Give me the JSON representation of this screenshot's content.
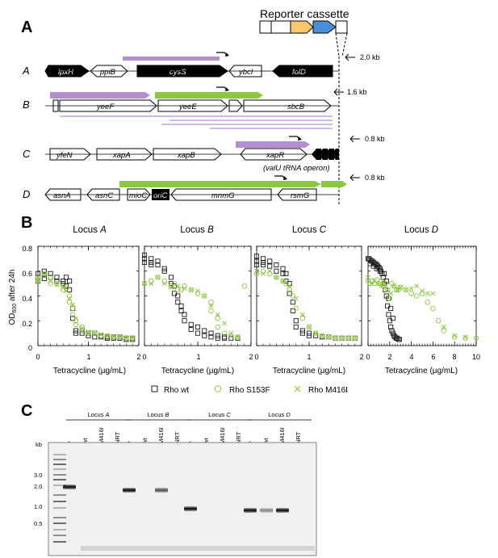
{
  "panels": {
    "a": "A",
    "b": "B",
    "c": "C"
  },
  "panel_a": {
    "reporter_label": "Reporter cassette",
    "rows": [
      {
        "label": "A",
        "genes": [
          "lpxH",
          "ppiB",
          "cysS",
          "ybcI",
          "folD"
        ],
        "kb": "2.0 kb"
      },
      {
        "label": "B",
        "genes": [
          "yeeF",
          "yeeE",
          "sbcB"
        ],
        "kb": "1.6 kb"
      },
      {
        "label": "C",
        "genes": [
          "yfeN",
          "xapA",
          "xapB",
          "xapR"
        ],
        "operon": "(valU tRNA operon)",
        "kb": "0.8 kb"
      },
      {
        "label": "D",
        "genes": [
          "asnA",
          "asnC",
          "mioC",
          "oriC",
          "mnmG",
          "rsmG"
        ],
        "kb": "0.8 kb"
      }
    ],
    "colors": {
      "purple": "#b48fd0",
      "green": "#8dc63f",
      "orange": "#fbc96b",
      "blue": "#4a90d9"
    }
  },
  "panel_b": {
    "ylabel_prefix": "OD",
    "ylabel_sub": "600",
    "ylabel_suffix": " after 24h",
    "xlabel": "Tetracycline (µg/mL)",
    "legend": [
      "Rho wt",
      "Rho S153F",
      "Rho M416I"
    ],
    "colors": {
      "wt": "#1a1a1a",
      "s153f": "#8dc63f",
      "m416i": "#8dc63f"
    }
  },
  "chart_data": [
    {
      "type": "scatter",
      "title_prefix": "Locus ",
      "title_locus": "A",
      "xlim": [
        0,
        2
      ],
      "ylim": [
        0,
        0.8
      ],
      "xticks": [
        "0",
        "1",
        "2"
      ],
      "yticks": [
        "0",
        "0.2",
        "0.4",
        "0.6",
        "0.8"
      ],
      "series": [
        {
          "name": "Rho wt",
          "x": [
            0.0,
            0.0,
            0.0,
            0.125,
            0.125,
            0.125,
            0.25,
            0.25,
            0.375,
            0.375,
            0.5,
            0.5,
            0.56,
            0.56,
            0.625,
            0.625,
            0.69,
            0.69,
            0.75,
            0.75,
            0.875,
            0.875,
            1.0,
            1.0,
            1.125,
            1.125,
            1.25,
            1.25,
            1.375,
            1.375,
            1.5,
            1.5,
            1.625,
            1.625,
            1.75,
            1.75,
            1.875,
            1.875
          ],
          "y": [
            0.58,
            0.55,
            0.52,
            0.6,
            0.57,
            0.54,
            0.58,
            0.55,
            0.55,
            0.52,
            0.52,
            0.5,
            0.55,
            0.48,
            0.52,
            0.45,
            0.3,
            0.22,
            0.12,
            0.1,
            0.12,
            0.1,
            0.1,
            0.08,
            0.1,
            0.07,
            0.08,
            0.07,
            0.07,
            0.06,
            0.07,
            0.06,
            0.07,
            0.06,
            0.06,
            0.05,
            0.06,
            0.05
          ]
        },
        {
          "name": "Rho S153F",
          "x": [
            0.0,
            0.0,
            0.125,
            0.25,
            0.25,
            0.375,
            0.5,
            0.5,
            0.56,
            0.625,
            0.625,
            0.69,
            0.69,
            0.75,
            0.75,
            0.875,
            0.875,
            1.0,
            1.125,
            1.25,
            1.375,
            1.5,
            1.625,
            1.75,
            1.875
          ],
          "y": [
            0.55,
            0.52,
            0.58,
            0.55,
            0.5,
            0.5,
            0.48,
            0.45,
            0.46,
            0.4,
            0.35,
            0.3,
            0.25,
            0.2,
            0.17,
            0.15,
            0.12,
            0.1,
            0.1,
            0.08,
            0.08,
            0.07,
            0.07,
            0.06,
            0.06
          ]
        },
        {
          "name": "Rho M416I",
          "x": [
            0.0,
            0.125,
            0.25,
            0.375,
            0.5,
            0.56,
            0.625,
            0.69,
            0.75,
            0.875,
            1.0,
            1.125,
            1.25,
            1.375,
            1.5,
            1.625,
            1.75,
            1.875
          ],
          "y": [
            0.53,
            0.57,
            0.52,
            0.49,
            0.47,
            0.44,
            0.38,
            0.33,
            0.22,
            0.14,
            0.11,
            0.1,
            0.09,
            0.08,
            0.07,
            0.07,
            0.06,
            0.06
          ]
        }
      ]
    },
    {
      "type": "scatter",
      "title_prefix": "Locus ",
      "title_locus": "B",
      "xlim": [
        0,
        2
      ],
      "ylim": [
        0,
        0.8
      ],
      "xticks": [
        "0",
        "1",
        "2"
      ],
      "yticks": [
        "0",
        "0.2",
        "0.4",
        "0.6",
        "0.8"
      ],
      "series": [
        {
          "name": "Rho wt",
          "x": [
            0.0,
            0.0,
            0.0,
            0.125,
            0.125,
            0.125,
            0.25,
            0.25,
            0.375,
            0.375,
            0.5,
            0.5,
            0.56,
            0.56,
            0.625,
            0.625,
            0.69,
            0.69,
            0.75,
            0.75,
            0.875,
            0.875,
            1.0,
            1.0,
            1.125,
            1.125,
            1.25,
            1.25,
            1.375,
            1.375,
            1.5,
            1.5,
            1.625,
            1.75
          ],
          "y": [
            0.73,
            0.7,
            0.67,
            0.7,
            0.67,
            0.65,
            0.68,
            0.65,
            0.62,
            0.6,
            0.55,
            0.5,
            0.48,
            0.42,
            0.4,
            0.35,
            0.32,
            0.28,
            0.25,
            0.2,
            0.17,
            0.13,
            0.15,
            0.1,
            0.12,
            0.08,
            0.1,
            0.07,
            0.08,
            0.06,
            0.07,
            0.06,
            0.06,
            0.06
          ]
        },
        {
          "name": "Rho S153F",
          "x": [
            0.0,
            0.125,
            0.25,
            0.375,
            0.5,
            0.56,
            0.625,
            0.69,
            0.75,
            0.875,
            1.0,
            1.125,
            1.25,
            1.25,
            1.375,
            1.375,
            1.5,
            1.625,
            1.75,
            1.875
          ],
          "y": [
            0.5,
            0.52,
            0.55,
            0.52,
            0.48,
            0.5,
            0.45,
            0.45,
            0.48,
            0.45,
            0.42,
            0.4,
            0.35,
            0.28,
            0.22,
            0.15,
            0.1,
            0.08,
            0.07,
            0.48
          ]
        },
        {
          "name": "Rho M416I",
          "x": [
            0.0,
            0.125,
            0.25,
            0.375,
            0.5,
            0.625,
            0.75,
            0.875,
            1.0,
            1.125,
            1.25,
            1.375,
            1.5,
            1.625,
            1.75
          ],
          "y": [
            0.5,
            0.5,
            0.55,
            0.5,
            0.47,
            0.48,
            0.46,
            0.45,
            0.44,
            0.4,
            0.32,
            0.25,
            0.18,
            0.1,
            0.07
          ]
        }
      ]
    },
    {
      "type": "scatter",
      "title_prefix": "Locus ",
      "title_locus": "C",
      "xlim": [
        0,
        2
      ],
      "ylim": [
        0,
        0.8
      ],
      "xticks": [
        "0",
        "1",
        "2"
      ],
      "yticks": [
        "0",
        "0.2",
        "0.4",
        "0.6",
        "0.8"
      ],
      "series": [
        {
          "name": "Rho wt",
          "x": [
            0.0,
            0.0,
            0.0,
            0.125,
            0.125,
            0.125,
            0.25,
            0.25,
            0.375,
            0.375,
            0.5,
            0.5,
            0.56,
            0.56,
            0.625,
            0.625,
            0.69,
            0.69,
            0.75,
            0.75,
            0.875,
            0.875,
            1.0,
            1.0,
            1.125,
            1.25,
            1.375,
            1.5,
            1.625,
            1.75,
            1.875
          ],
          "y": [
            0.72,
            0.68,
            0.65,
            0.7,
            0.67,
            0.65,
            0.68,
            0.64,
            0.65,
            0.6,
            0.62,
            0.58,
            0.58,
            0.52,
            0.5,
            0.42,
            0.35,
            0.28,
            0.2,
            0.15,
            0.12,
            0.1,
            0.1,
            0.08,
            0.08,
            0.07,
            0.07,
            0.06,
            0.06,
            0.06,
            0.06
          ]
        },
        {
          "name": "Rho S153F",
          "x": [
            0.0,
            0.125,
            0.25,
            0.375,
            0.5,
            0.56,
            0.625,
            0.69,
            0.75,
            0.875,
            1.0,
            1.125,
            1.25,
            1.375,
            1.5,
            1.625,
            1.75,
            1.875
          ],
          "y": [
            0.58,
            0.6,
            0.58,
            0.55,
            0.52,
            0.5,
            0.45,
            0.4,
            0.3,
            0.22,
            0.15,
            0.1,
            0.08,
            0.07,
            0.06,
            0.06,
            0.06,
            0.06
          ]
        },
        {
          "name": "Rho M416I",
          "x": [
            0.0,
            0.125,
            0.25,
            0.375,
            0.5,
            0.625,
            0.75,
            0.875,
            1.0,
            1.125,
            1.25,
            1.375,
            1.5,
            1.625,
            1.75,
            1.875
          ],
          "y": [
            0.6,
            0.58,
            0.6,
            0.55,
            0.52,
            0.48,
            0.38,
            0.25,
            0.15,
            0.1,
            0.08,
            0.07,
            0.06,
            0.06,
            0.06,
            0.06
          ]
        }
      ]
    },
    {
      "type": "scatter",
      "title_prefix": "Locus ",
      "title_locus": "D",
      "xlim": [
        0,
        10
      ],
      "ylim": [
        0,
        0.8
      ],
      "xticks": [
        "0",
        "2",
        "4",
        "6",
        "8",
        "10"
      ],
      "yticks": [
        "0",
        "0.2",
        "0.4",
        "0.6",
        "0.8"
      ],
      "series": [
        {
          "name": "Rho wt",
          "x": [
            0.0,
            0.1,
            0.2,
            0.3,
            0.4,
            0.5,
            0.6,
            0.7,
            0.8,
            0.9,
            1.0,
            1.1,
            1.2,
            1.3,
            1.4,
            1.5,
            1.6,
            1.7,
            1.8,
            1.9,
            2.0,
            2.1,
            2.2,
            2.3,
            2.4,
            2.5,
            2.6,
            2.7,
            2.8,
            2.9,
            1.5,
            1.7,
            1.9,
            2.1,
            2.3,
            0.2,
            0.5,
            0.8,
            1.1
          ],
          "y": [
            0.7,
            0.7,
            0.69,
            0.68,
            0.68,
            0.67,
            0.66,
            0.66,
            0.65,
            0.64,
            0.63,
            0.62,
            0.6,
            0.58,
            0.55,
            0.5,
            0.45,
            0.4,
            0.32,
            0.25,
            0.2,
            0.15,
            0.12,
            0.1,
            0.08,
            0.07,
            0.06,
            0.06,
            0.05,
            0.05,
            0.58,
            0.52,
            0.38,
            0.3,
            0.22,
            0.66,
            0.64,
            0.62,
            0.6
          ]
        },
        {
          "name": "Rho S153F",
          "x": [
            0.0,
            0.2,
            0.4,
            0.6,
            0.8,
            1.0,
            1.2,
            1.4,
            1.6,
            1.8,
            2.0,
            2.2,
            2.4,
            2.6,
            2.8,
            3.0,
            3.5,
            4.0,
            4.5,
            5.0,
            5.5,
            6.0,
            6.5,
            7.0,
            8.0,
            9.0,
            10.0
          ],
          "y": [
            0.52,
            0.5,
            0.52,
            0.5,
            0.53,
            0.5,
            0.52,
            0.48,
            0.5,
            0.45,
            0.38,
            0.5,
            0.48,
            0.45,
            0.45,
            0.47,
            0.45,
            0.42,
            0.4,
            0.42,
            0.35,
            0.3,
            0.2,
            0.12,
            0.07,
            0.06,
            0.06
          ]
        },
        {
          "name": "Rho M416I",
          "x": [
            0.0,
            0.3,
            0.6,
            0.9,
            1.2,
            1.5,
            1.8,
            2.1,
            2.4,
            2.7,
            3.0,
            3.5,
            4.0,
            4.5,
            5.0,
            5.5,
            6.0,
            7.0,
            8.0,
            9.0
          ],
          "y": [
            0.55,
            0.5,
            0.52,
            0.5,
            0.48,
            0.5,
            0.45,
            0.42,
            0.48,
            0.45,
            0.47,
            0.45,
            0.46,
            0.48,
            0.44,
            0.42,
            0.42,
            0.15,
            0.08,
            0.07
          ]
        }
      ]
    }
  ],
  "panel_c": {
    "kb_label": "kb",
    "ladder": [
      "3.0",
      "2.0",
      "1.0",
      "0.5"
    ],
    "loci": [
      {
        "prefix": "Locus ",
        "name": "A"
      },
      {
        "prefix": "Locus ",
        "name": "B"
      },
      {
        "prefix": "Locus ",
        "name": "C"
      },
      {
        "prefix": "Locus ",
        "name": "D"
      }
    ],
    "lanes": [
      "+",
      "wt",
      "M416I",
      "NRT"
    ],
    "bands": [
      [
        1.0,
        0.0,
        0.0,
        0.0
      ],
      [
        1.0,
        0.0,
        0.7,
        0.0
      ],
      [
        1.0,
        0.0,
        0.0,
        0.0
      ],
      [
        1.0,
        0.45,
        1.0,
        0.0
      ]
    ]
  }
}
